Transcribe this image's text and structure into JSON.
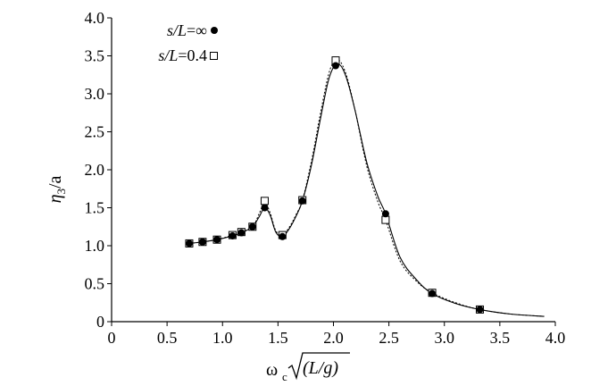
{
  "chart_data": {
    "type": "scatter",
    "xlim": [
      0,
      4.0
    ],
    "ylim": [
      0,
      4.0
    ],
    "x_ticks": [
      0,
      0.5,
      1.0,
      1.5,
      2.0,
      2.5,
      3.0,
      3.5,
      4.0
    ],
    "x_tick_labels": [
      "0",
      "0.5",
      "1.0",
      "1.5",
      "2.0",
      "2.5",
      "3.0",
      "3.5",
      "4.0"
    ],
    "y_ticks": [
      0,
      0.5,
      1.0,
      1.5,
      2.0,
      2.5,
      3.0,
      3.5,
      4.0
    ],
    "y_tick_labels": [
      "0",
      "0.5",
      "1.0",
      "1.5",
      "2.0",
      "2.5",
      "3.0",
      "3.5",
      "4.0"
    ],
    "xlabel": {
      "omega": "ω",
      "sub": "c",
      "root": "(L/g)"
    },
    "ylabel": {
      "eta": "η",
      "sub": "3",
      "rest": "/a"
    },
    "grid": false,
    "legend_position": "top-left",
    "series": [
      {
        "name_prefix": "s/L",
        "name_value": "=∞",
        "marker": "filled-circle",
        "color": "#000000",
        "x": [
          0.7,
          0.82,
          0.95,
          1.09,
          1.17,
          1.27,
          1.38,
          1.54,
          1.72,
          2.02,
          2.47,
          2.89,
          3.32
        ],
        "y": [
          1.03,
          1.05,
          1.08,
          1.13,
          1.17,
          1.25,
          1.5,
          1.12,
          1.59,
          3.37,
          1.42,
          0.37,
          0.16
        ]
      },
      {
        "name_prefix": "s/L",
        "name_value": "=0.4",
        "marker": "open-square",
        "color": "#000000",
        "x": [
          0.7,
          0.82,
          0.95,
          1.09,
          1.17,
          1.27,
          1.38,
          1.54,
          1.72,
          2.02,
          2.47,
          2.89,
          3.32
        ],
        "y": [
          1.03,
          1.05,
          1.08,
          1.14,
          1.18,
          1.25,
          1.59,
          1.14,
          1.6,
          3.44,
          1.34,
          0.38,
          0.16
        ]
      }
    ],
    "curves": [
      {
        "style": "solid",
        "x": [
          0.7,
          0.82,
          0.95,
          1.09,
          1.17,
          1.27,
          1.33,
          1.38,
          1.43,
          1.48,
          1.54,
          1.6,
          1.66,
          1.72,
          1.8,
          1.88,
          1.95,
          2.0,
          2.04,
          2.08,
          2.13,
          2.2,
          2.3,
          2.4,
          2.47,
          2.6,
          2.75,
          2.89,
          3.1,
          3.32,
          3.6,
          3.9
        ],
        "y": [
          1.03,
          1.05,
          1.08,
          1.13,
          1.17,
          1.25,
          1.38,
          1.5,
          1.4,
          1.18,
          1.12,
          1.22,
          1.38,
          1.59,
          2.05,
          2.65,
          3.15,
          3.35,
          3.39,
          3.34,
          3.15,
          2.75,
          2.1,
          1.65,
          1.42,
          0.85,
          0.55,
          0.37,
          0.24,
          0.16,
          0.1,
          0.07
        ]
      },
      {
        "style": "dotted",
        "x": [
          0.7,
          0.82,
          0.95,
          1.09,
          1.17,
          1.27,
          1.33,
          1.38,
          1.43,
          1.48,
          1.54,
          1.6,
          1.66,
          1.72,
          1.8,
          1.88,
          1.95,
          2.0,
          2.04,
          2.08,
          2.13,
          2.2,
          2.3,
          2.4,
          2.47,
          2.6,
          2.75,
          2.89,
          3.1,
          3.32,
          3.6,
          3.9
        ],
        "y": [
          1.03,
          1.05,
          1.08,
          1.14,
          1.18,
          1.25,
          1.42,
          1.57,
          1.43,
          1.2,
          1.14,
          1.24,
          1.4,
          1.6,
          2.1,
          2.72,
          3.22,
          3.42,
          3.45,
          3.38,
          3.18,
          2.75,
          2.05,
          1.58,
          1.34,
          0.8,
          0.53,
          0.38,
          0.25,
          0.16,
          0.1,
          0.07
        ]
      }
    ]
  }
}
